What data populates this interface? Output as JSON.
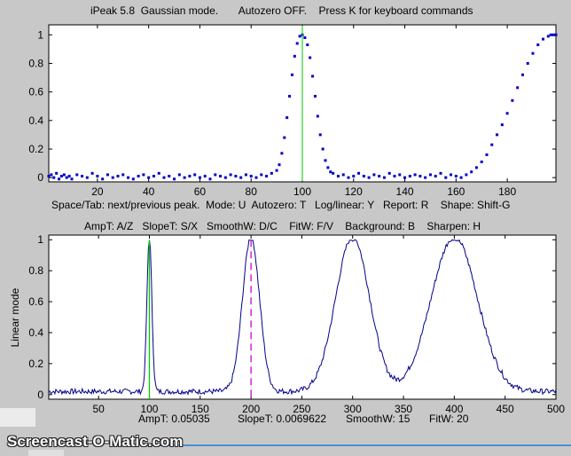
{
  "header": {
    "title_line": "iPeak 5.8  Gaussian mode.       Autozero OFF.    Press K for keyboard commands"
  },
  "command_lines": {
    "line1": "Space/Tab: next/previous peak.  Mode: U  Autozero: T   Log/linear: Y   Report: R    Shape: Shift-G",
    "line2": "AmpT: A/Z   SlopeT: S/X   SmoothW: D/C    FitW: F/V    Background: B    Sharpen: H"
  },
  "status": {
    "ampt": "AmpT: 0.05035",
    "slopet": "SlopeT: 0.0069622",
    "smoothw": "SmoothW: 15",
    "fitw": "FitW: 20"
  },
  "watermark": "Screencast-O-Matic.com",
  "chart_data": [
    {
      "type": "scatter",
      "title": "",
      "xlabel": "",
      "ylabel": "",
      "xlim": [
        1,
        199
      ],
      "ylim": [
        -0.03,
        1.07
      ],
      "xticks": [
        20,
        40,
        60,
        80,
        100,
        120,
        140,
        160,
        180
      ],
      "yticks": [
        0,
        0.2,
        0.4,
        0.6,
        0.8,
        1
      ],
      "ytick_labels": [
        "0",
        "0.2",
        "0.4",
        "0.6",
        "0.8",
        "1"
      ],
      "marker_color": "#0000cc",
      "cursor_line": {
        "x": 100,
        "color": "#00cc00"
      },
      "series": [
        {
          "x": [
            1,
            2,
            3,
            4,
            5,
            6,
            7,
            8,
            9,
            10,
            12,
            14,
            16,
            18,
            20,
            22,
            24,
            26,
            28,
            30,
            32,
            34,
            36,
            38,
            40,
            42,
            44,
            46,
            48,
            50,
            52,
            54,
            56,
            58,
            60,
            62,
            64,
            66,
            68,
            70,
            72,
            74,
            76,
            78,
            80,
            82,
            84,
            86,
            88,
            90,
            91,
            92,
            93,
            94,
            95,
            96,
            97,
            98,
            99,
            100,
            101,
            102,
            103,
            104,
            105,
            106,
            107,
            108,
            109,
            110,
            111,
            112,
            114,
            116,
            118,
            120,
            122,
            124,
            126,
            128,
            130,
            132,
            134,
            136,
            138,
            140,
            142,
            144,
            146,
            148,
            150,
            152,
            154,
            156,
            158,
            160,
            162,
            164,
            166,
            168,
            170,
            172,
            174,
            176,
            178,
            180,
            182,
            184,
            186,
            188,
            190,
            192,
            194,
            196,
            197,
            198,
            199
          ],
          "y": [
            0.01,
            0.02,
            0.0,
            0.03,
            -0.01,
            0.01,
            0.02,
            0.0,
            0.01,
            -0.01,
            0.02,
            0.01,
            0.0,
            0.03,
            0.01,
            -0.01,
            0.02,
            0.0,
            0.01,
            0.02,
            0.0,
            -0.01,
            0.01,
            0.02,
            0.0,
            0.01,
            0.03,
            0.0,
            0.01,
            -0.01,
            0.02,
            0.0,
            0.01,
            0.02,
            0.0,
            0.01,
            -0.01,
            0.02,
            0.01,
            0.0,
            0.02,
            0.01,
            0.0,
            0.02,
            0.01,
            0.0,
            0.02,
            0.01,
            0.03,
            0.05,
            0.09,
            0.17,
            0.28,
            0.42,
            0.57,
            0.72,
            0.85,
            0.94,
            0.99,
            1.0,
            0.98,
            0.93,
            0.84,
            0.71,
            0.57,
            0.43,
            0.3,
            0.2,
            0.12,
            0.07,
            0.04,
            0.03,
            0.01,
            0.02,
            0.0,
            0.01,
            0.03,
            0.01,
            0.0,
            0.02,
            0.01,
            0.0,
            0.03,
            0.01,
            0.02,
            0.0,
            0.01,
            0.02,
            0.01,
            0.0,
            0.02,
            0.01,
            0.03,
            0.0,
            0.02,
            0.01,
            0.0,
            0.02,
            0.04,
            0.07,
            0.11,
            0.16,
            0.23,
            0.3,
            0.37,
            0.45,
            0.54,
            0.63,
            0.72,
            0.8,
            0.87,
            0.93,
            0.97,
            0.99,
            1.0,
            1.0,
            1.0
          ]
        }
      ]
    },
    {
      "type": "line",
      "title": "",
      "xlabel": "",
      "ylabel": "Linear mode",
      "xlim": [
        1,
        500
      ],
      "ylim": [
        -0.03,
        1.03
      ],
      "xticks": [
        50,
        100,
        150,
        200,
        250,
        300,
        350,
        400,
        450,
        500
      ],
      "yticks": [
        0,
        0.2,
        0.4,
        0.6,
        0.8,
        1
      ],
      "ytick_labels": [
        "0",
        "0.2",
        "0.4",
        "0.6",
        "0.8",
        "1"
      ],
      "line_color": "#00008b",
      "cursor_line": {
        "x": 100,
        "color": "#00cc00"
      },
      "dashed_line": {
        "x": 200,
        "color": "#d000d0"
      },
      "peaks": [
        {
          "center": 100,
          "height": 1.0,
          "width": 4
        },
        {
          "center": 200,
          "height": 1.0,
          "width": 14
        },
        {
          "center": 300,
          "height": 1.0,
          "width": 28
        },
        {
          "center": 400,
          "height": 1.0,
          "width": 38
        }
      ],
      "baseline": 0.02
    }
  ]
}
